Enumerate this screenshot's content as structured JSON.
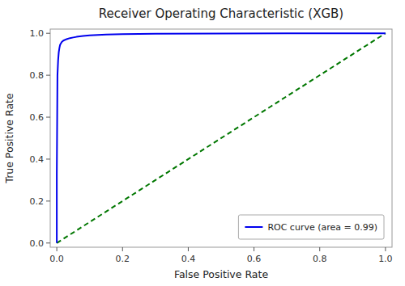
{
  "chart_data": {
    "type": "line",
    "title": "Receiver Operating Characteristic (XGB)",
    "x_label": "False Positive Rate",
    "y_label": "True Positive Rate",
    "series": [
      {
        "color": "#007700",
        "line_style": "dashed",
        "x": [
          0,
          1
        ],
        "values": [
          0,
          1
        ]
      },
      {
        "name": "ROC curve (area = 0.99)",
        "color": "#0000EE",
        "line_style": "solid",
        "x": [
          0.0,
          0.0,
          0.002,
          0.004,
          0.006,
          0.008,
          0.01,
          0.015,
          0.02,
          0.03,
          0.04,
          0.05,
          0.06,
          0.08,
          0.1,
          0.15,
          0.2,
          0.3,
          0.5,
          0.7,
          1.0
        ],
        "values": [
          0.0,
          0.33,
          0.8,
          0.87,
          0.91,
          0.93,
          0.945,
          0.958,
          0.965,
          0.972,
          0.977,
          0.98,
          0.983,
          0.987,
          0.99,
          0.994,
          0.996,
          0.998,
          0.999,
          1.0,
          1.0
        ]
      }
    ],
    "xlim": [
      -0.02,
      1.02
    ],
    "ylim": [
      -0.02,
      1.02
    ],
    "xticks": [
      {
        "value": 0.0,
        "label": "0.0"
      },
      0.2,
      0.4,
      0.6,
      0.8,
      {
        "value": 1.0,
        "label": "1.0"
      }
    ],
    "yticks": [
      {
        "value": 0.0,
        "label": "0.0"
      },
      0.2,
      0.4,
      0.6,
      0.8,
      {
        "value": 1.0,
        "label": "1.0"
      }
    ],
    "legend": "lower right",
    "grid": false
  }
}
